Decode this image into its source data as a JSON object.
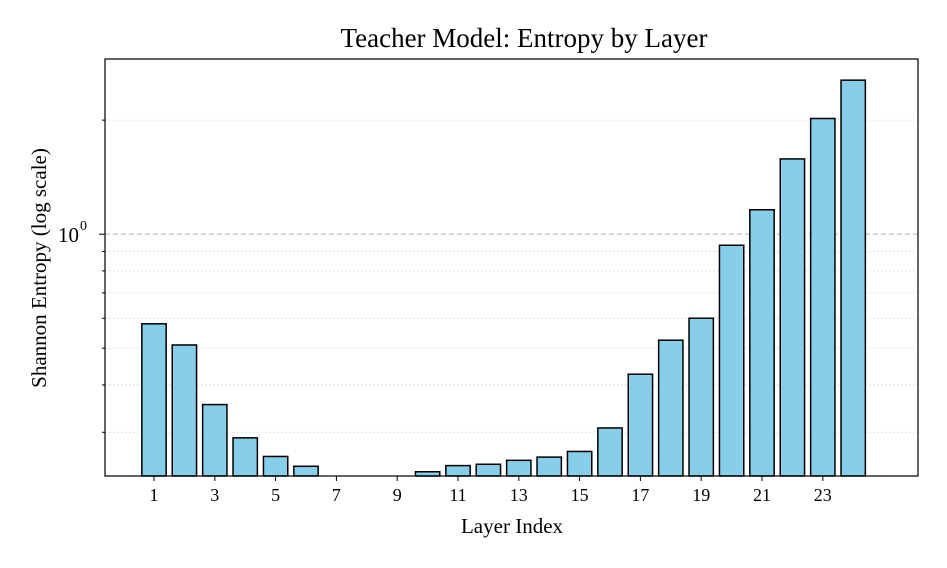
{
  "chart_data": {
    "type": "bar",
    "title": "Teacher Model: Entropy by Layer",
    "xlabel": "Layer Index",
    "ylabel": "Shannon Entropy (log scale)",
    "yscale": "log",
    "ylim": [
      0.23,
      2.9
    ],
    "grid": "y (major dashed, minor dotted)",
    "bar_color": "#87CEEB",
    "bar_edge_color": "#000000",
    "x": [
      1,
      2,
      3,
      4,
      5,
      6,
      7,
      8,
      9,
      10,
      11,
      12,
      13,
      14,
      15,
      16,
      17,
      18,
      19,
      20,
      21,
      22,
      23,
      24
    ],
    "values": [
      0.58,
      0.51,
      0.355,
      0.29,
      0.259,
      0.244,
      0.229,
      0.226,
      0.224,
      0.236,
      0.245,
      0.247,
      0.253,
      0.258,
      0.267,
      0.308,
      0.427,
      0.525,
      0.6,
      0.935,
      1.16,
      1.58,
      2.02,
      2.55
    ],
    "xticks": [
      1,
      3,
      5,
      7,
      9,
      11,
      13,
      15,
      17,
      19,
      21,
      23
    ],
    "yticks": [
      {
        "base": "10",
        "exp": "0"
      }
    ]
  }
}
